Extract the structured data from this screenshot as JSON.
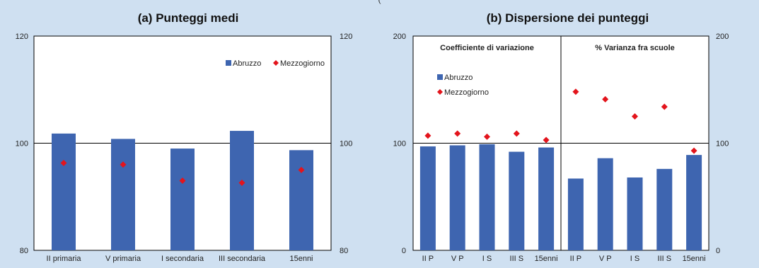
{
  "header_strip": "(",
  "chart_data": [
    {
      "type": "bar",
      "title": "(a) Punteggi medi",
      "categories": [
        "II primaria",
        "V primaria",
        "I secondaria",
        "III secondaria",
        "15enni"
      ],
      "ylim": [
        80,
        120
      ],
      "yticks_left": [
        "80",
        "100",
        "120"
      ],
      "yticks_right": [
        "80",
        "100",
        "120"
      ],
      "reference_line": 100,
      "grid": false,
      "legend_position": "top-right",
      "series": [
        {
          "name": "Abruzzo",
          "kind": "bar",
          "color": "#3e65b0",
          "values": [
            101.8,
            100.8,
            99.0,
            102.3,
            98.7
          ]
        },
        {
          "name": "Mezzogiorno",
          "kind": "marker",
          "color": "#e3141c",
          "values": [
            96.3,
            96.0,
            93.0,
            92.6,
            95.0
          ]
        }
      ]
    },
    {
      "type": "bar",
      "title": "(b) Dispersione dei punteggi",
      "ylim": [
        0,
        200
      ],
      "yticks_left": [
        "0",
        "100",
        "200"
      ],
      "yticks_right": [
        "0",
        "100",
        "200"
      ],
      "reference_line": 100,
      "grid": false,
      "legend_position": "top-left",
      "legend": [
        "Abruzzo",
        "Mezzogiorno"
      ],
      "subpanels": [
        {
          "subtitle": "Coefficiente di variazione",
          "categories": [
            "II P",
            "V P",
            "I S",
            "III S",
            "15enni"
          ],
          "series": [
            {
              "name": "Abruzzo",
              "kind": "bar",
              "color": "#3e65b0",
              "values": [
                97,
                98,
                99,
                92,
                96
              ]
            },
            {
              "name": "Mezzogiorno",
              "kind": "marker",
              "color": "#e3141c",
              "values": [
                107,
                109,
                106,
                109,
                103
              ]
            }
          ]
        },
        {
          "subtitle": "% Varianza fra scuole",
          "categories": [
            "II P",
            "V P",
            "I S",
            "III S",
            "15enni"
          ],
          "series": [
            {
              "name": "Abruzzo",
              "kind": "bar",
              "color": "#3e65b0",
              "values": [
                67,
                86,
                68,
                76,
                89
              ]
            },
            {
              "name": "Mezzogiorno",
              "kind": "marker",
              "color": "#e3141c",
              "values": [
                148,
                141,
                125,
                134,
                93
              ]
            }
          ]
        }
      ]
    }
  ]
}
